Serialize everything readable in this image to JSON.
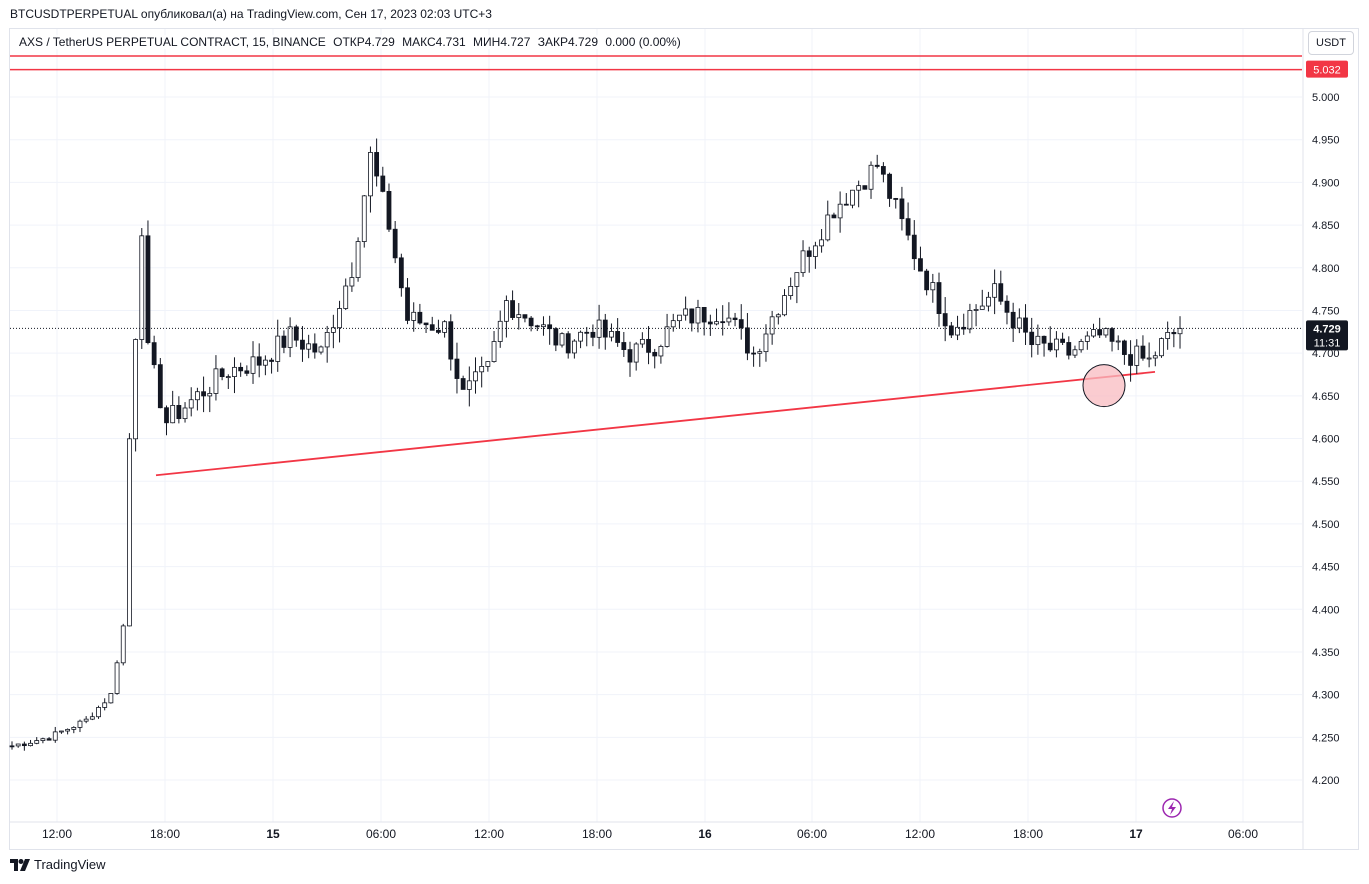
{
  "header": {
    "published_caption": "BTCUSDTPERPETUAL опубликовал(а) на TradingView.com, Сен 17, 2023 02:03 UTC+3"
  },
  "symbol_bar": {
    "symbol": "AXS / TetherUS PERPETUAL CONTRACT, 15, BINANCE",
    "open": "ОТКР4.729",
    "high": "МАКС4.731",
    "low": "МИН4.727",
    "close": "ЗАКР4.729",
    "change": "0.000 (0.00%)"
  },
  "price_scale": {
    "currency": "USDT"
  },
  "footer": {
    "brand": "TradingView"
  },
  "colors": {
    "drawing_red": "#f23645",
    "circle_fill": "#f8bbc0",
    "candle_up": "#ffffff",
    "candle_down": "#131722",
    "last_price_bg": "#131722",
    "alert_icon": "#9c27b0"
  },
  "chart_data": {
    "type": "candlestick",
    "timeframe": "15",
    "ylim": [
      4.16,
      5.08
    ],
    "y_ticks": [
      "5.000",
      "4.950",
      "4.900",
      "4.850",
      "4.800",
      "4.750",
      "4.700",
      "4.650",
      "4.600",
      "4.550",
      "4.500",
      "4.450",
      "4.400",
      "4.350",
      "4.300",
      "4.250",
      "4.200"
    ],
    "x_ticks": [
      "12:00",
      "18:00",
      "15",
      "06:00",
      "12:00",
      "18:00",
      "16",
      "06:00",
      "12:00",
      "18:00",
      "17",
      "06:00"
    ],
    "last_price": "4.729",
    "countdown": "11:31",
    "horizontal_line_price": "5.032",
    "trendline": {
      "from": [
        "14 17:45",
        4.557
      ],
      "to": [
        "17 01:00",
        4.678
      ]
    },
    "highlight_circle_price": 4.662,
    "anchors": [
      [
        0,
        4.24
      ],
      [
        6,
        4.25
      ],
      [
        12,
        4.27
      ],
      [
        16,
        4.3
      ],
      [
        18,
        4.38
      ],
      [
        19,
        4.6
      ],
      [
        21,
        4.85
      ],
      [
        22,
        4.7
      ],
      [
        25,
        4.62
      ],
      [
        30,
        4.65
      ],
      [
        35,
        4.68
      ],
      [
        40,
        4.69
      ],
      [
        45,
        4.72
      ],
      [
        50,
        4.7
      ],
      [
        55,
        4.8
      ],
      [
        58,
        4.93
      ],
      [
        61,
        4.85
      ],
      [
        64,
        4.74
      ],
      [
        70,
        4.73
      ],
      [
        73,
        4.65
      ],
      [
        77,
        4.68
      ],
      [
        80,
        4.76
      ],
      [
        84,
        4.74
      ],
      [
        89,
        4.71
      ],
      [
        94,
        4.73
      ],
      [
        100,
        4.7
      ],
      [
        104,
        4.71
      ],
      [
        108,
        4.74
      ],
      [
        115,
        4.75
      ],
      [
        120,
        4.7
      ],
      [
        127,
        4.8
      ],
      [
        133,
        4.87
      ],
      [
        140,
        4.92
      ],
      [
        147,
        4.8
      ],
      [
        152,
        4.73
      ],
      [
        159,
        4.77
      ],
      [
        165,
        4.71
      ],
      [
        171,
        4.7
      ],
      [
        176,
        4.72
      ],
      [
        180,
        4.7
      ],
      [
        184,
        4.69
      ],
      [
        186,
        4.71
      ],
      [
        189,
        4.729
      ]
    ]
  }
}
